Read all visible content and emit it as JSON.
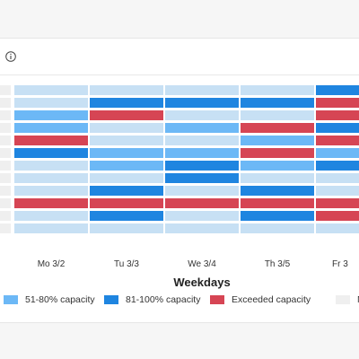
{
  "chart_data": {
    "type": "heatmap",
    "xlabel": "Weekdays",
    "categories": [
      "",
      "Mo 3/2",
      "Tu 3/3",
      "We 3/4",
      "Th 3/5",
      "Fr 3"
    ],
    "levels": [
      {
        "key": "L",
        "name": "",
        "color": "#c7e0f4"
      },
      {
        "key": "M",
        "name": "51-80% capacity",
        "color": "#6cb8f6"
      },
      {
        "key": "H",
        "name": "81-100% capacity",
        "color": "#1f85e0"
      },
      {
        "key": "X",
        "name": "Exceeded capacity",
        "color": "#d64554"
      },
      {
        "key": "N",
        "name": "No c",
        "color": "#efefef"
      }
    ],
    "legend": [
      "M",
      "H",
      "X",
      "N"
    ],
    "grid": [
      [
        "N",
        "L",
        "L",
        "L",
        "L",
        "H"
      ],
      [
        "N",
        "L",
        "H",
        "H",
        "H",
        "X"
      ],
      [
        "N",
        "M",
        "X",
        "L",
        "L",
        "X"
      ],
      [
        "N",
        "M",
        "L",
        "M",
        "X",
        "H"
      ],
      [
        "N",
        "X",
        "L",
        "L",
        "M",
        "X"
      ],
      [
        "N",
        "H",
        "M",
        "M",
        "X",
        "M"
      ],
      [
        "N",
        "L",
        "M",
        "H",
        "M",
        "H"
      ],
      [
        "N",
        "L",
        "L",
        "H",
        "L",
        "L"
      ],
      [
        "N",
        "L",
        "H",
        "L",
        "H",
        "L"
      ],
      [
        "N",
        "X",
        "X",
        "X",
        "X",
        "X"
      ],
      [
        "N",
        "L",
        "H",
        "L",
        "H",
        "X"
      ],
      [
        "N",
        "L",
        "L",
        "L",
        "L",
        "L"
      ]
    ]
  },
  "header": {
    "info_icon": "info-icon"
  }
}
